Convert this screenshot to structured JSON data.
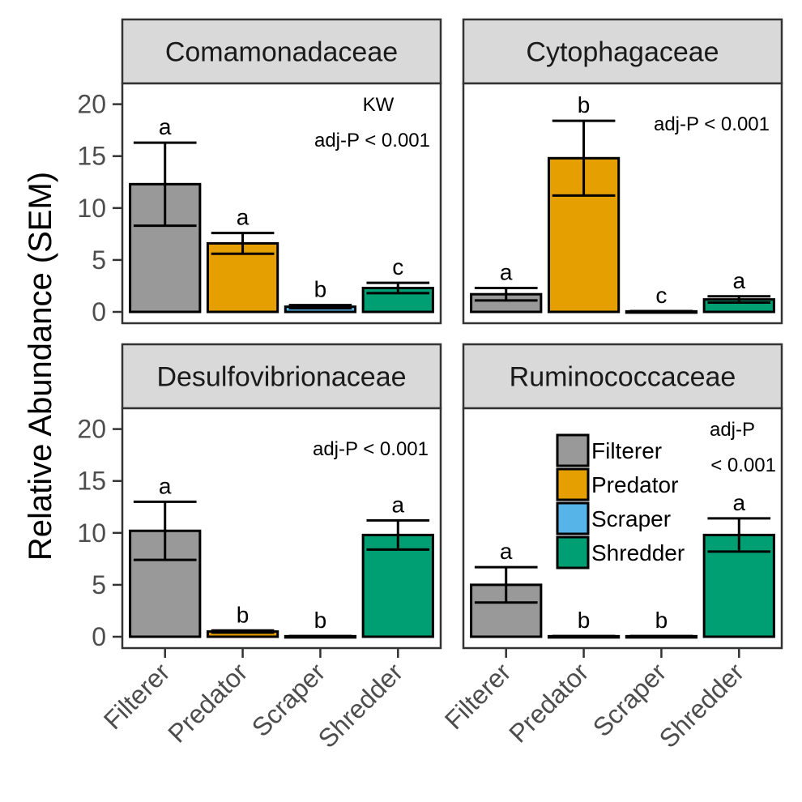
{
  "chart_data": {
    "type": "bar",
    "ylabel": "Relative Abundance (SEM)",
    "xlabel": "",
    "ylim": [
      0,
      22
    ],
    "yticks": [
      0,
      5,
      10,
      15,
      20
    ],
    "categories": [
      "Filterer",
      "Predator",
      "Scraper",
      "Shredder"
    ],
    "colors": {
      "Filterer": "#999999",
      "Predator": "#E69F00",
      "Scraper": "#56B4E9",
      "Shredder": "#009E73"
    },
    "legend": {
      "position": "inside-bottom-right-panel",
      "entries": [
        "Filterer",
        "Predator",
        "Scraper",
        "Shredder"
      ]
    },
    "panels": [
      {
        "title": "Comamonadaceae",
        "annotations": [
          "KW",
          "adj-P < 0.001"
        ],
        "values": [
          12.3,
          6.6,
          0.5,
          2.3
        ],
        "errors": [
          4.0,
          1.0,
          0.15,
          0.5
        ],
        "letters": [
          "a",
          "a",
          "b",
          "c"
        ]
      },
      {
        "title": "Cytophagaceae",
        "annotations": [
          "adj-P < 0.001"
        ],
        "values": [
          1.7,
          14.8,
          0.05,
          1.2
        ],
        "errors": [
          0.6,
          3.6,
          0.03,
          0.3
        ],
        "letters": [
          "a",
          "b",
          "c",
          "a"
        ]
      },
      {
        "title": "Desulfovibrionaceae",
        "annotations": [
          "adj-P < 0.001"
        ],
        "values": [
          10.2,
          0.5,
          0.05,
          9.8
        ],
        "errors": [
          2.8,
          0.1,
          0.02,
          1.4
        ],
        "letters": [
          "a",
          "b",
          "b",
          "a"
        ]
      },
      {
        "title": "Ruminococcaceae",
        "annotations": [
          "adj-P",
          "< 0.001"
        ],
        "values": [
          5.0,
          0.05,
          0.05,
          9.8
        ],
        "errors": [
          1.7,
          0.02,
          0.02,
          1.6
        ],
        "letters": [
          "a",
          "b",
          "b",
          "a"
        ]
      }
    ]
  }
}
